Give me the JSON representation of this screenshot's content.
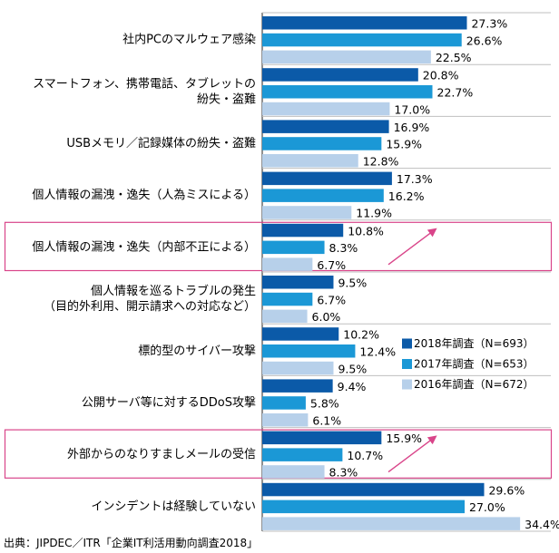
{
  "chart_data": {
    "type": "bar",
    "orientation": "horizontal",
    "categories": [
      [
        "社内PCのマルウェア感染"
      ],
      [
        "スマートフォン、携帯電話、タブレットの",
        "紛失・盗難"
      ],
      [
        "USBメモリ／記録媒体の紛失・盗難"
      ],
      [
        "個人情報の漏洩・逸失（人為ミスによる）"
      ],
      [
        "個人情報の漏洩・逸失（内部不正による）"
      ],
      [
        "個人情報を巡るトラブルの発生",
        "（目的外利用、開示請求への対応など）"
      ],
      [
        "標的型のサイバー攻撃"
      ],
      [
        "公開サーバ等に対するDDoS攻撃"
      ],
      [
        "外部からのなりすましメールの受信"
      ],
      [
        "インシデントは経験していない"
      ]
    ],
    "series": [
      {
        "name": "2018年調査（N=693）",
        "color": "#0b5aa8",
        "values": [
          27.3,
          20.8,
          16.9,
          17.3,
          10.8,
          9.5,
          10.2,
          9.4,
          15.9,
          29.6
        ],
        "labels": [
          "27.3%",
          "20.8%",
          "16.9%",
          "17.3%",
          "10.8%",
          "9.5%",
          "10.2%",
          "9.4%",
          "15.9%",
          "29.6%"
        ]
      },
      {
        "name": "2017年調査（N=653）",
        "color": "#1b98d6",
        "values": [
          26.6,
          22.7,
          15.9,
          16.2,
          8.3,
          6.7,
          12.4,
          5.8,
          10.7,
          27.0
        ],
        "labels": [
          "26.6%",
          "22.7%",
          "15.9%",
          "16.2%",
          "8.3%",
          "6.7%",
          "12.4%",
          "5.8%",
          "10.7%",
          "27.0%"
        ]
      },
      {
        "name": "2016年調査（N=672）",
        "color": "#b7d0ea",
        "values": [
          22.5,
          17.0,
          12.8,
          11.9,
          6.7,
          6.0,
          9.5,
          6.1,
          8.3,
          34.4
        ],
        "labels": [
          "22.5%",
          "17.0%",
          "12.8%",
          "11.9%",
          "6.7%",
          "6.0%",
          "9.5%",
          "6.1%",
          "8.3%",
          "34.4%"
        ]
      }
    ],
    "highlighted_categories": [
      4,
      8
    ],
    "highlight_color": "#d9458a",
    "legend_position": "right-middle",
    "source": "出典：JIPDEC／ITR「企業IT利活用動向調査2018」",
    "xlim": [
      0,
      40
    ]
  }
}
